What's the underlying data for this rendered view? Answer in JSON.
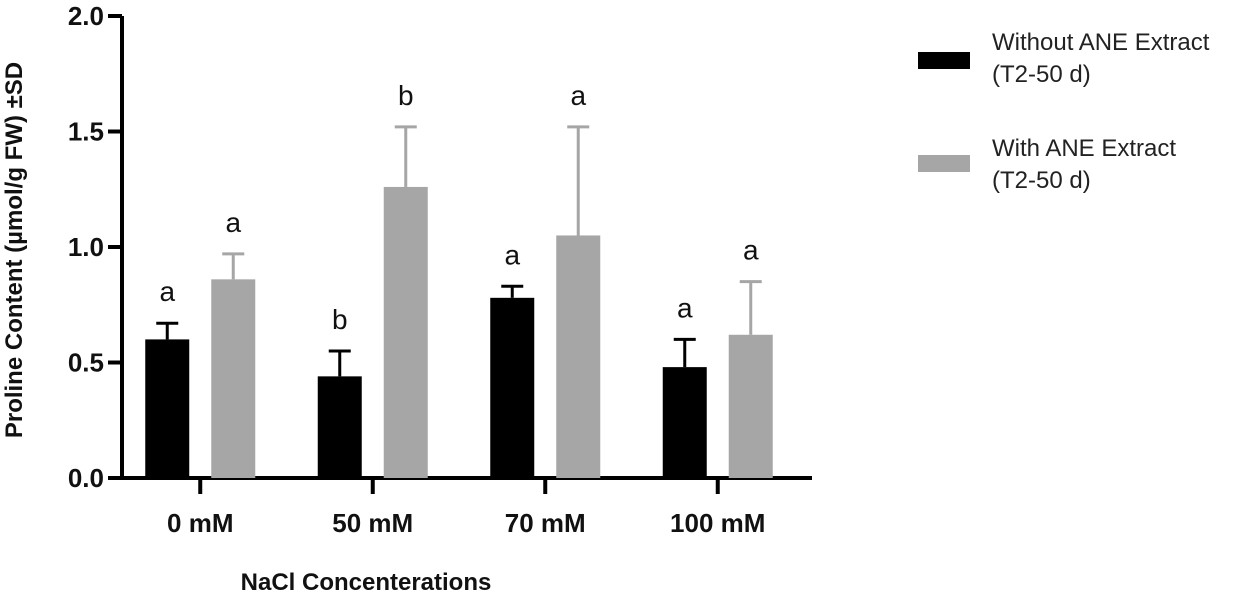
{
  "chart_data": {
    "type": "bar",
    "title": "",
    "xlabel": "NaCl Concenterations",
    "ylabel": "Proline Content (µmol/g FW) ±SD",
    "ylim": [
      0,
      2.0
    ],
    "yticks": [
      "0.0",
      "0.5",
      "1.0",
      "1.5",
      "2.0"
    ],
    "ytick_values": [
      0,
      0.5,
      1.0,
      1.5,
      2.0
    ],
    "categories": [
      "0 mM",
      "50 mM",
      "70 mM",
      "100 mM"
    ],
    "series": [
      {
        "name": "Without ANE Extract",
        "name_line2": "(T2-50 d)",
        "color": "#000000",
        "errcolor": "#000000",
        "values": [
          0.6,
          0.44,
          0.78,
          0.48
        ],
        "errors": [
          0.07,
          0.11,
          0.05,
          0.12
        ],
        "sig": [
          "a",
          "b",
          "a",
          "a"
        ]
      },
      {
        "name": "With ANE Extract",
        "name_line2": "(T2-50 d)",
        "color": "#a6a6a6",
        "errcolor": "#a6a6a6",
        "values": [
          0.86,
          1.26,
          1.05,
          0.62
        ],
        "errors": [
          0.11,
          0.26,
          0.47,
          0.23
        ],
        "sig": [
          "a",
          "b",
          "a",
          "a"
        ]
      }
    ],
    "legend_position": "top-right"
  }
}
